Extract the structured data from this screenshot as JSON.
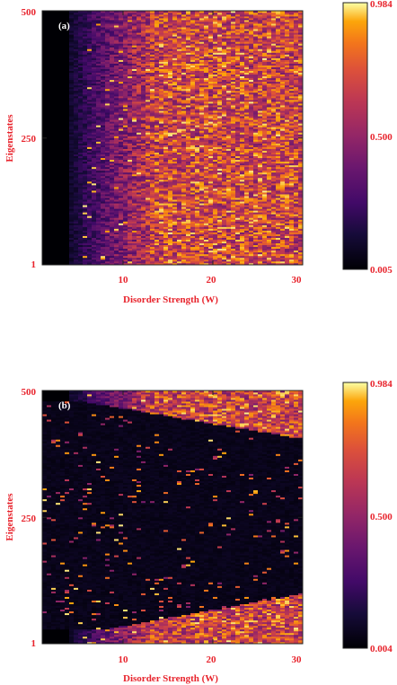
{
  "chart_data": [
    {
      "type": "heatmap",
      "panel_label": "(a)",
      "xlabel": "Disorder Strength (W)",
      "ylabel": "Eigenstates",
      "xlim": [
        1,
        30
      ],
      "ylim": [
        1,
        500
      ],
      "x_ticks": [
        10,
        20,
        30
      ],
      "x_tick_labels": [
        "10",
        "20",
        "30"
      ],
      "y_ticks": [
        1,
        250,
        500
      ],
      "y_tick_labels": [
        "1",
        "250",
        "500"
      ],
      "colormap": "inferno",
      "colorbar": {
        "min": 0.005,
        "mid": 0.5,
        "max": 0.984,
        "tick_labels": [
          "0.984",
          "0.500",
          "0.005"
        ]
      },
      "pattern": "uniform",
      "description_values": {
        "dark_region_max_W": 4,
        "transition_W": [
          4,
          14
        ],
        "saturated_value": 0.75
      }
    },
    {
      "type": "heatmap",
      "panel_label": "(b)",
      "xlabel": "Disorder Strength (W)",
      "ylabel": "Eigenstates",
      "xlim": [
        1,
        30
      ],
      "ylim": [
        1,
        500
      ],
      "x_ticks": [
        10,
        20,
        30
      ],
      "x_tick_labels": [
        "10",
        "20",
        "30"
      ],
      "y_ticks": [
        1,
        250,
        500
      ],
      "y_tick_labels": [
        "1",
        "250",
        "500"
      ],
      "colormap": "inferno",
      "colorbar": {
        "min": 0.004,
        "mid": 0.5,
        "max": 0.984,
        "tick_labels": [
          "0.984",
          "0.500",
          "0.004"
        ]
      },
      "pattern": "mobility-edge",
      "description_values": {
        "dark_region_max_W": 4,
        "edge_lower_at_W30": 100,
        "edge_upper_at_W30": 405,
        "saturated_value": 0.75
      }
    }
  ]
}
